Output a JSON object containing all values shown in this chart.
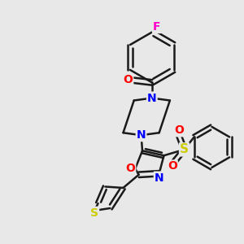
{
  "bg_color": "#e8e8e8",
  "line_color": "#1a1a1a",
  "bond_width": 1.8,
  "atom_colors": {
    "N": "#0000ff",
    "O": "#ff0000",
    "S_sulfonyl": "#cccc00",
    "S_thio": "#cccc00",
    "F": "#ff00cc",
    "C": "#1a1a1a"
  },
  "font_size": 9,
  "figsize": [
    3.0,
    3.0
  ],
  "dpi": 100
}
